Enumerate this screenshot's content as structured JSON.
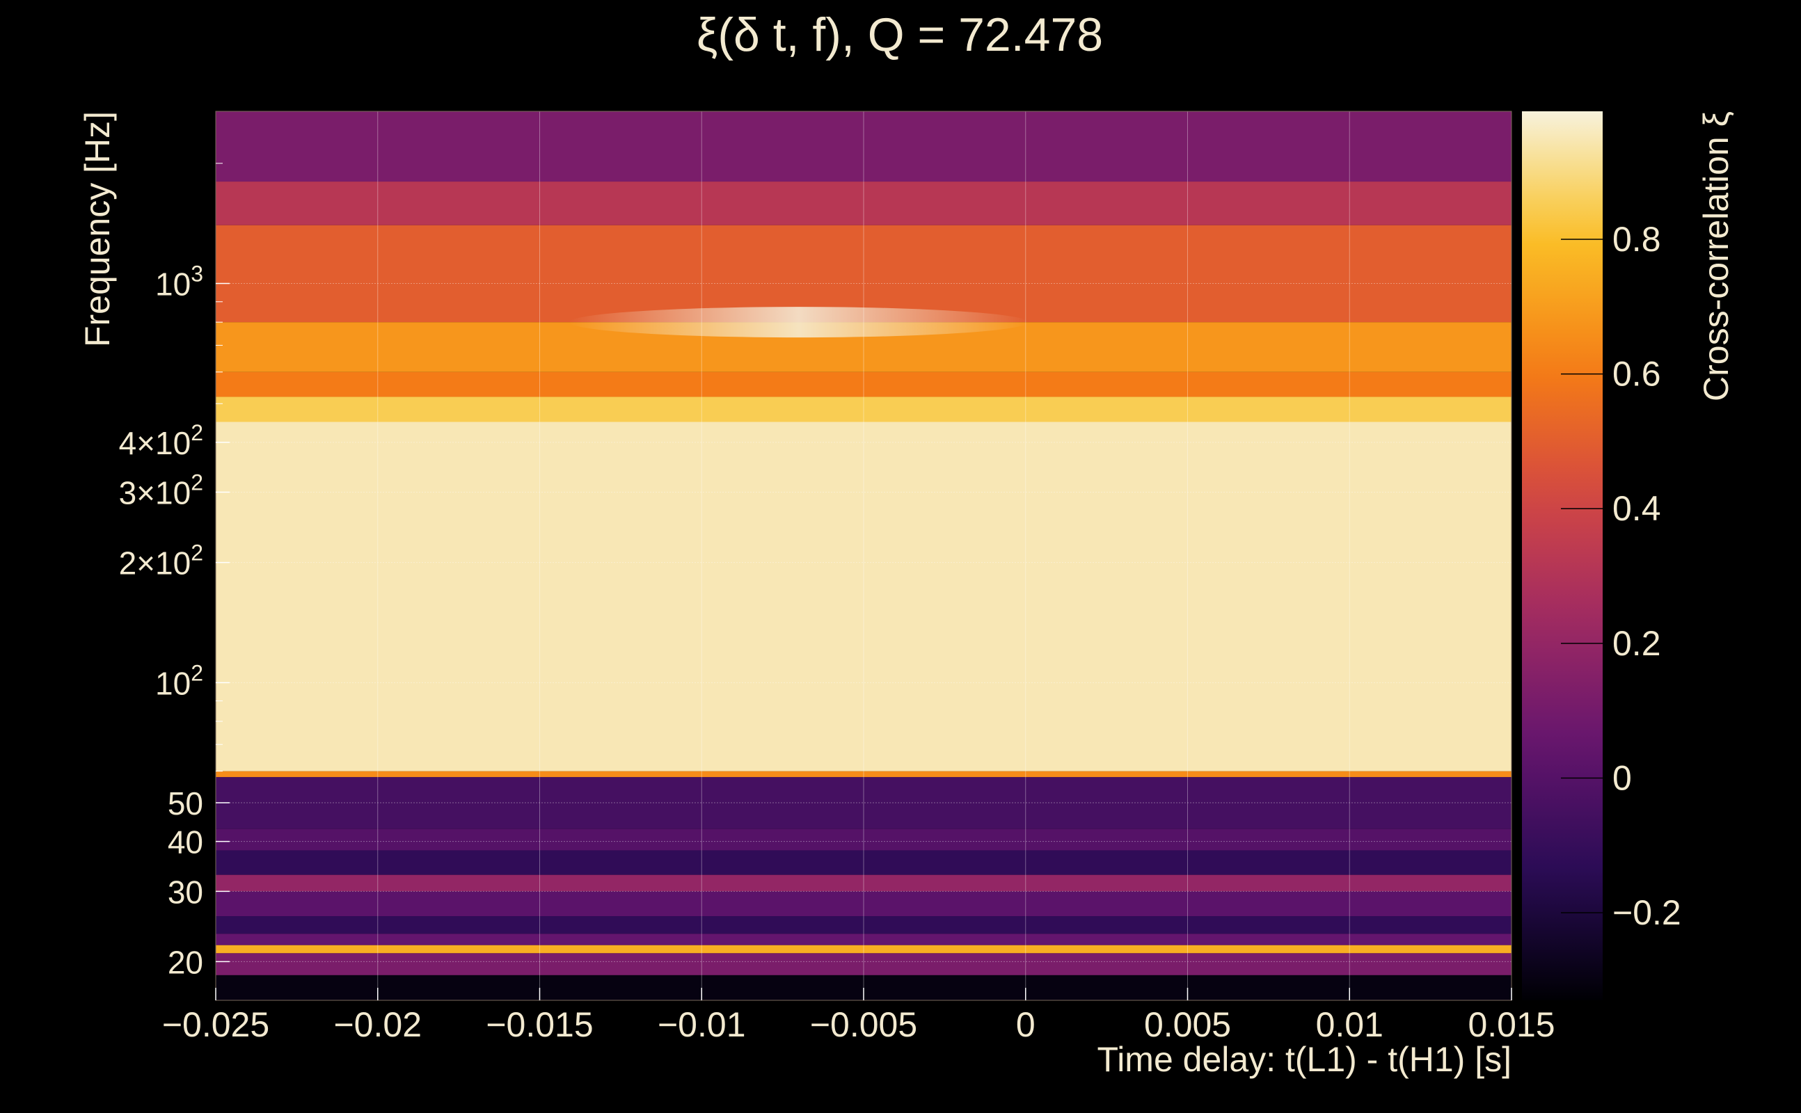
{
  "chart_data": {
    "type": "heatmap",
    "title": "ξ(δ t, f), Q = 72.478",
    "xlabel": "Time delay: t(L1) - t(H1) [s]",
    "ylabel": "Frequency [Hz]",
    "colorbar_label": "Cross-correlation ξ",
    "xlim": [
      -0.025,
      0.015
    ],
    "ylim": [
      16,
      2700
    ],
    "y_scale": "log",
    "grid": true,
    "colormap": "inferno",
    "clim": [
      -0.33,
      0.99
    ],
    "x_ticks": [
      {
        "value": -0.025,
        "label": "−0.025"
      },
      {
        "value": -0.02,
        "label": "−0.02"
      },
      {
        "value": -0.015,
        "label": "−0.015"
      },
      {
        "value": -0.01,
        "label": "−0.01"
      },
      {
        "value": -0.005,
        "label": "−0.005"
      },
      {
        "value": 0,
        "label": "0"
      },
      {
        "value": 0.005,
        "label": "0.005"
      },
      {
        "value": 0.01,
        "label": "0.01"
      },
      {
        "value": 0.015,
        "label": "0.015"
      }
    ],
    "y_ticks": [
      {
        "value": 20,
        "label": "20"
      },
      {
        "value": 30,
        "label": "30"
      },
      {
        "value": 40,
        "label": "40"
      },
      {
        "value": 50,
        "label": "50"
      },
      {
        "value": 100,
        "label": "10",
        "exp": "2"
      },
      {
        "value": 200,
        "label": "2×10",
        "exp": "2"
      },
      {
        "value": 300,
        "label": "3×10",
        "exp": "2"
      },
      {
        "value": 400,
        "label": "4×10",
        "exp": "2"
      },
      {
        "value": 1000,
        "label": "10",
        "exp": "3"
      }
    ],
    "colorbar_ticks": [
      {
        "value": -0.2,
        "label": "−0.2"
      },
      {
        "value": 0,
        "label": "0"
      },
      {
        "value": 0.2,
        "label": "0.2"
      },
      {
        "value": 0.4,
        "label": "0.4"
      },
      {
        "value": 0.6,
        "label": "0.6"
      },
      {
        "value": 0.8,
        "label": "0.8"
      }
    ],
    "frequency_bands": [
      {
        "f_low": 16,
        "f_high": 18.5,
        "xi": -0.3
      },
      {
        "f_low": 18.5,
        "f_high": 21,
        "xi": 0.12
      },
      {
        "f_low": 21,
        "f_high": 22,
        "xi": 0.75
      },
      {
        "f_low": 22,
        "f_high": 23.5,
        "xi": 0.05
      },
      {
        "f_low": 23.5,
        "f_high": 26,
        "xi": -0.12
      },
      {
        "f_low": 26,
        "f_high": 30,
        "xi": 0.02
      },
      {
        "f_low": 30,
        "f_high": 33,
        "xi": 0.2
      },
      {
        "f_low": 33,
        "f_high": 38,
        "xi": -0.12
      },
      {
        "f_low": 38,
        "f_high": 43,
        "xi": 0.0
      },
      {
        "f_low": 43,
        "f_high": 58,
        "xi": -0.05
      },
      {
        "f_low": 58,
        "f_high": 60,
        "xi": 0.65
      },
      {
        "f_low": 60,
        "f_high": 450,
        "xi": 0.95
      },
      {
        "f_low": 450,
        "f_high": 520,
        "xi": 0.85
      },
      {
        "f_low": 520,
        "f_high": 600,
        "xi": 0.6
      },
      {
        "f_low": 600,
        "f_high": 800,
        "xi": 0.68
      },
      {
        "f_low": 800,
        "f_high": 1400,
        "xi": 0.5
      },
      {
        "f_low": 1400,
        "f_high": 1800,
        "xi": 0.32
      },
      {
        "f_low": 1800,
        "f_high": 2700,
        "xi": 0.12
      }
    ],
    "peak": {
      "x": -0.007,
      "f": 800,
      "xi": 0.97
    }
  }
}
